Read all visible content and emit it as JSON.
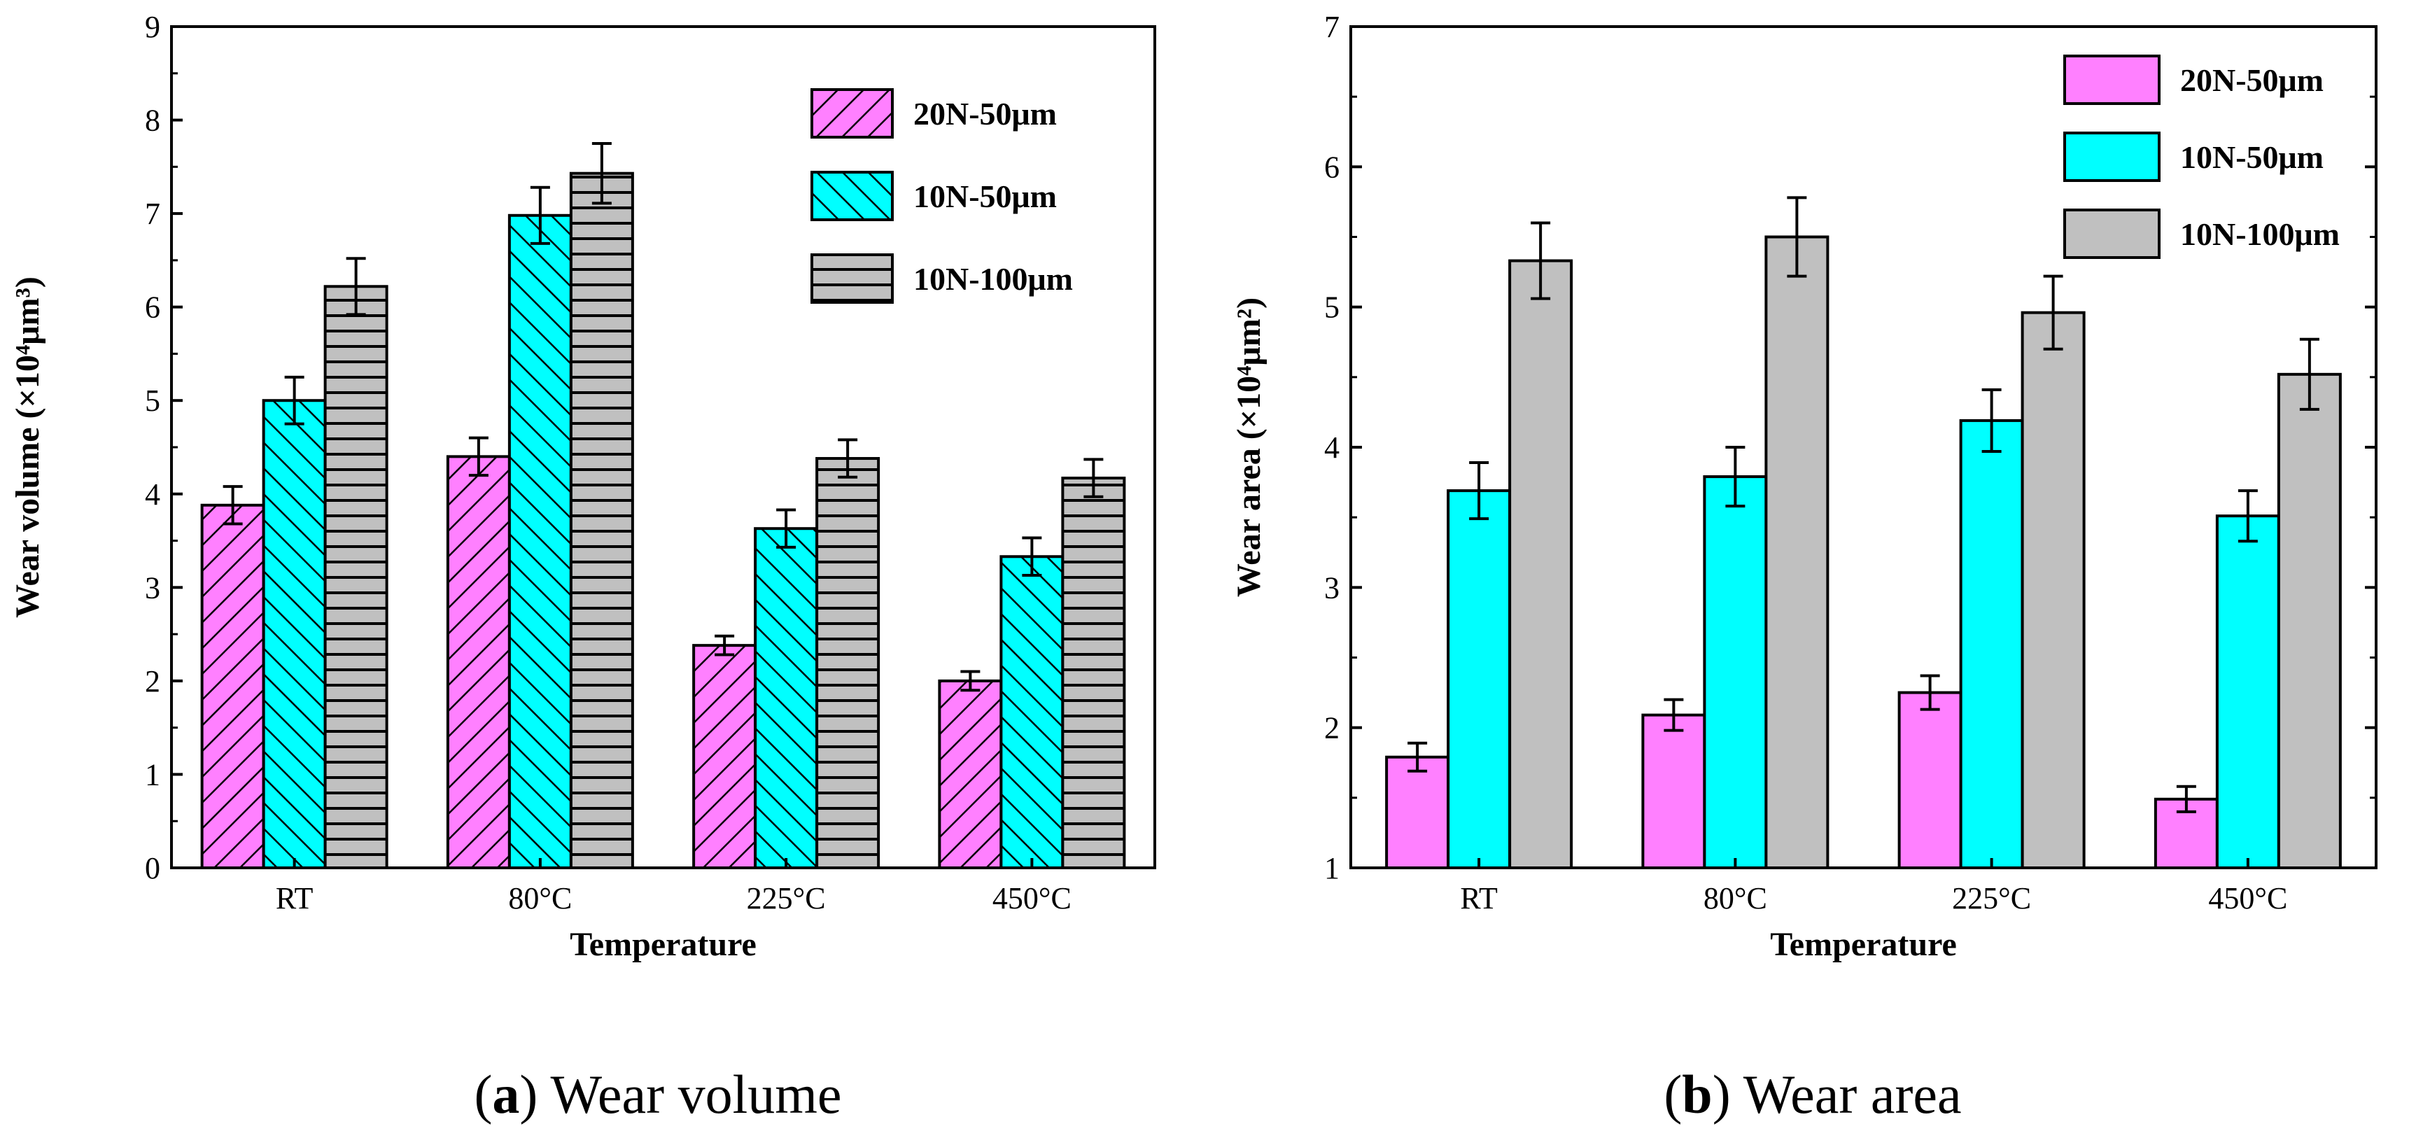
{
  "chart_data": [
    {
      "type": "bar",
      "caption_letter": "a",
      "caption_rest": ") Wear volume",
      "caption_open": "(",
      "xlabel": "Temperature",
      "ylabel": "Wear volume (×10⁴μm³)",
      "categories": [
        "RT",
        "80°C",
        "225°C",
        "450°C"
      ],
      "ylim": [
        0,
        9
      ],
      "yticks": [
        "0",
        "1",
        "2",
        "3",
        "4",
        "5",
        "6",
        "7",
        "8",
        "9"
      ],
      "legend_position": "top-right",
      "hatched": true,
      "series": [
        {
          "name": "20N-50μm",
          "values": [
            3.88,
            4.4,
            2.38,
            2.0
          ],
          "errors": [
            0.2,
            0.2,
            0.1,
            0.1
          ],
          "color": "#ff80ff",
          "pattern": "diag-right"
        },
        {
          "name": "10N-50μm",
          "values": [
            5.0,
            6.98,
            3.63,
            3.33
          ],
          "errors": [
            0.25,
            0.3,
            0.2,
            0.2
          ],
          "color": "#00ffff",
          "pattern": "diag-left"
        },
        {
          "name": "10N-100μm",
          "values": [
            6.22,
            7.43,
            4.38,
            4.17
          ],
          "errors": [
            0.3,
            0.32,
            0.2,
            0.2
          ],
          "color": "#c0c0c0",
          "pattern": "horizontal"
        }
      ]
    },
    {
      "type": "bar",
      "caption_letter": "b",
      "caption_rest": ") Wear area",
      "caption_open": "(",
      "xlabel": "Temperature",
      "ylabel": "Wear area (×10⁴μm²)",
      "categories": [
        "RT",
        "80°C",
        "225°C",
        "450°C"
      ],
      "ylim": [
        1,
        7
      ],
      "yticks": [
        "1",
        "2",
        "3",
        "4",
        "5",
        "6",
        "7"
      ],
      "legend_position": "top-right",
      "hatched": false,
      "series": [
        {
          "name": "20N-50μm",
          "values": [
            1.79,
            2.09,
            2.25,
            1.49
          ],
          "errors": [
            0.1,
            0.11,
            0.12,
            0.09
          ],
          "color": "#ff80ff",
          "pattern": "solid"
        },
        {
          "name": "10N-50μm",
          "values": [
            3.69,
            3.79,
            4.19,
            3.51
          ],
          "errors": [
            0.2,
            0.21,
            0.22,
            0.18
          ],
          "color": "#00ffff",
          "pattern": "solid"
        },
        {
          "name": "10N-100μm",
          "values": [
            5.33,
            5.5,
            4.96,
            4.52
          ],
          "errors": [
            0.27,
            0.28,
            0.26,
            0.25
          ],
          "color": "#c0c0c0",
          "pattern": "solid"
        }
      ]
    }
  ]
}
